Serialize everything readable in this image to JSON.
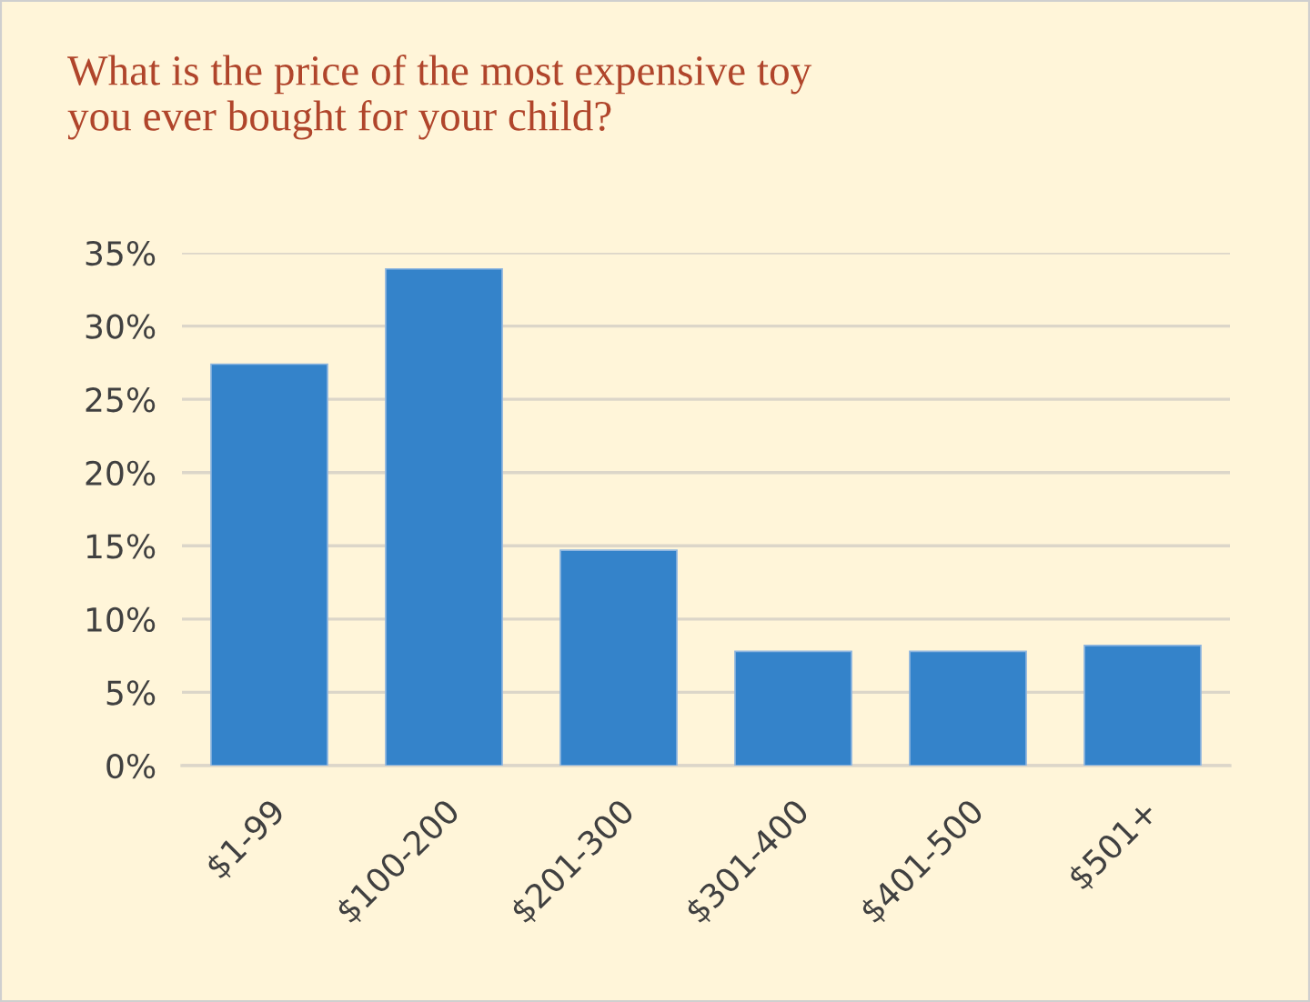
{
  "chart_data": {
    "type": "bar",
    "title": "What is the price of the most expensive toy\nyou ever bought for your child?",
    "categories": [
      "$1-99",
      "$100-200",
      "$201-300",
      "$301-400",
      "$401-500",
      "$501+"
    ],
    "values": [
      27.4,
      33.9,
      14.7,
      7.8,
      7.8,
      8.2
    ],
    "color": "#3483ca",
    "ylim": [
      0,
      35
    ],
    "yticks": [
      {
        "value": 0,
        "label": "0%"
      },
      {
        "value": 5,
        "label": "5%"
      },
      {
        "value": 10,
        "label": "10%"
      },
      {
        "value": 15,
        "label": "15%"
      },
      {
        "value": 20,
        "label": "20%"
      },
      {
        "value": 25,
        "label": "25%"
      },
      {
        "value": 30,
        "label": "30%"
      },
      {
        "value": 35,
        "label": "35%"
      }
    ],
    "grid": "y",
    "legend": false
  }
}
